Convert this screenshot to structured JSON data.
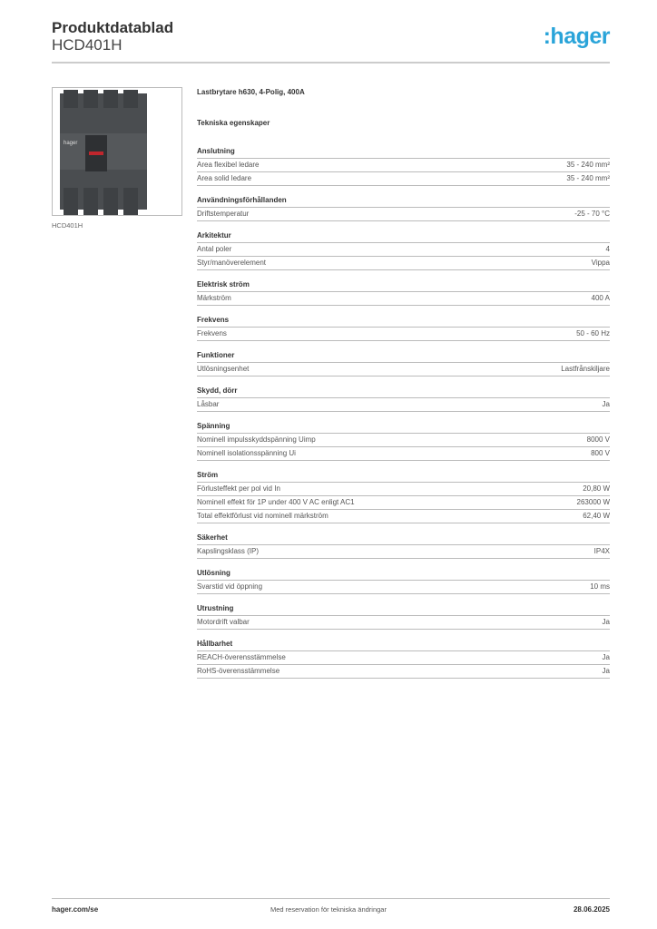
{
  "header": {
    "title": "Produktdatablad",
    "product_code": "HCD401H",
    "logo": ":hager",
    "brand_color": "#2aa4d9"
  },
  "image": {
    "caption": "HCD401H",
    "logo_text": "hager"
  },
  "main": {
    "product_name": "Lastbrytare h630, 4-Polig, 400A",
    "section_title": "Tekniska egenskaper",
    "sections": [
      {
        "title": "Anslutning",
        "rows": [
          [
            "Area flexibel ledare",
            "35 - 240 mm²"
          ],
          [
            "Area solid ledare",
            "35 - 240 mm²"
          ]
        ]
      },
      {
        "title": "Användningsförhållanden",
        "rows": [
          [
            "Driftstemperatur",
            "-25 - 70 °C"
          ]
        ]
      },
      {
        "title": "Arkitektur",
        "rows": [
          [
            "Antal poler",
            "4"
          ],
          [
            "Styr/manöverelement",
            "Vippa"
          ]
        ]
      },
      {
        "title": "Elektrisk ström",
        "rows": [
          [
            "Märkström",
            "400 A"
          ]
        ]
      },
      {
        "title": "Frekvens",
        "rows": [
          [
            "Frekvens",
            "50 - 60 Hz"
          ]
        ]
      },
      {
        "title": "Funktioner",
        "rows": [
          [
            "Utlösningsenhet",
            "Lastfrånskiljare"
          ]
        ]
      },
      {
        "title": "Skydd, dörr",
        "rows": [
          [
            "Låsbar",
            "Ja"
          ]
        ]
      },
      {
        "title": "Spänning",
        "rows": [
          [
            "Nominell impulsskyddspänning Uimp",
            "8000 V"
          ],
          [
            "Nominell isolationsspänning Ui",
            "800 V"
          ]
        ]
      },
      {
        "title": "Ström",
        "rows": [
          [
            "Förlusteffekt per pol vid In",
            "20,80 W"
          ],
          [
            "Nominell effekt för 1P under 400 V AC enligt AC1",
            "263000 W"
          ],
          [
            "Total effektförlust vid nominell märkström",
            "62,40 W"
          ]
        ]
      },
      {
        "title": "Säkerhet",
        "rows": [
          [
            "Kapslingsklass (IP)",
            "IP4X"
          ]
        ]
      },
      {
        "title": "Utlösning",
        "rows": [
          [
            "Svarstid vid öppning",
            "10 ms"
          ]
        ]
      },
      {
        "title": "Utrustning",
        "rows": [
          [
            "Motordrift valbar",
            "Ja"
          ]
        ]
      },
      {
        "title": "Hållbarhet",
        "rows": [
          [
            "REACH-överensstämmelse",
            "Ja"
          ],
          [
            "RoHS-överensstämmelse",
            "Ja"
          ]
        ]
      }
    ]
  },
  "footer": {
    "website": "hager.com/se",
    "disclaimer": "Med reservation för tekniska ändringar",
    "date": "28.06.2025"
  }
}
